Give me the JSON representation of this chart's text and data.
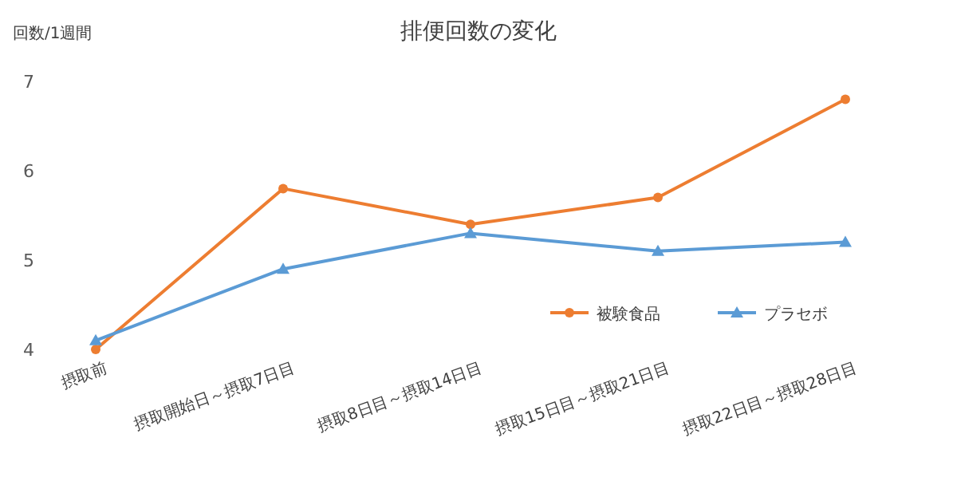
{
  "chart_data": {
    "type": "line",
    "title": "排便回数の変化",
    "ylabel": "回数/1週間",
    "categories": [
      "摂取前",
      "摂取開始日～摂取7日目",
      "摂取8日目～摂取14日目",
      "摂取15日目～摂取21日目",
      "摂取22日目～摂取28日目"
    ],
    "series": [
      {
        "name": "被験食品",
        "color": "#ed7d31",
        "marker": "circle",
        "values": [
          4.0,
          5.8,
          5.4,
          5.7,
          6.8
        ]
      },
      {
        "name": "プラセボ",
        "color": "#5b9bd5",
        "marker": "triangle",
        "values": [
          4.1,
          4.9,
          5.3,
          5.1,
          5.2
        ]
      }
    ],
    "ylim": [
      4,
      7
    ],
    "yticks": [
      4,
      5,
      6,
      7
    ],
    "legend": "right"
  }
}
